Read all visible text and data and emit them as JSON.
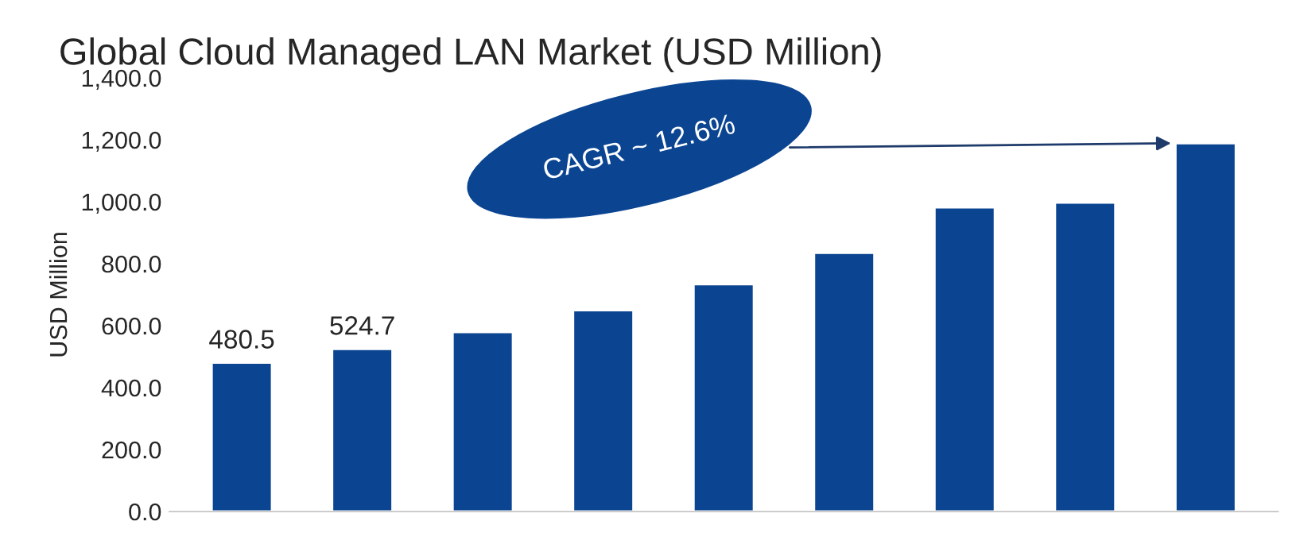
{
  "chart_data": {
    "type": "bar",
    "title": "Global Cloud Managed LAN Market (USD Million)",
    "ylabel": "USD Million",
    "categories": [
      null,
      null,
      null,
      null,
      null,
      null,
      null,
      null,
      null
    ],
    "values": [
      480.5,
      524.7,
      579,
      650,
      734,
      835,
      982,
      997,
      1189
    ],
    "value_labels": [
      "480.5",
      "524.7",
      null,
      null,
      null,
      null,
      null,
      null,
      null
    ],
    "color": "#0b4592",
    "ylim": [
      0,
      1400
    ],
    "yticks": [
      {
        "value": 0,
        "label": "0.0"
      },
      {
        "value": 200,
        "label": "200.0"
      },
      {
        "value": 400,
        "label": "400.0"
      },
      {
        "value": 600,
        "label": "600.0"
      },
      {
        "value": 800,
        "label": "800.0"
      },
      {
        "value": 1000,
        "label": "1,000.0"
      },
      {
        "value": 1200,
        "label": "1,200.0"
      },
      {
        "value": 1400,
        "label": "1,400.0"
      }
    ],
    "annotations": [
      "CAGR ~ 12.6%"
    ],
    "grid": false,
    "legend": false
  }
}
